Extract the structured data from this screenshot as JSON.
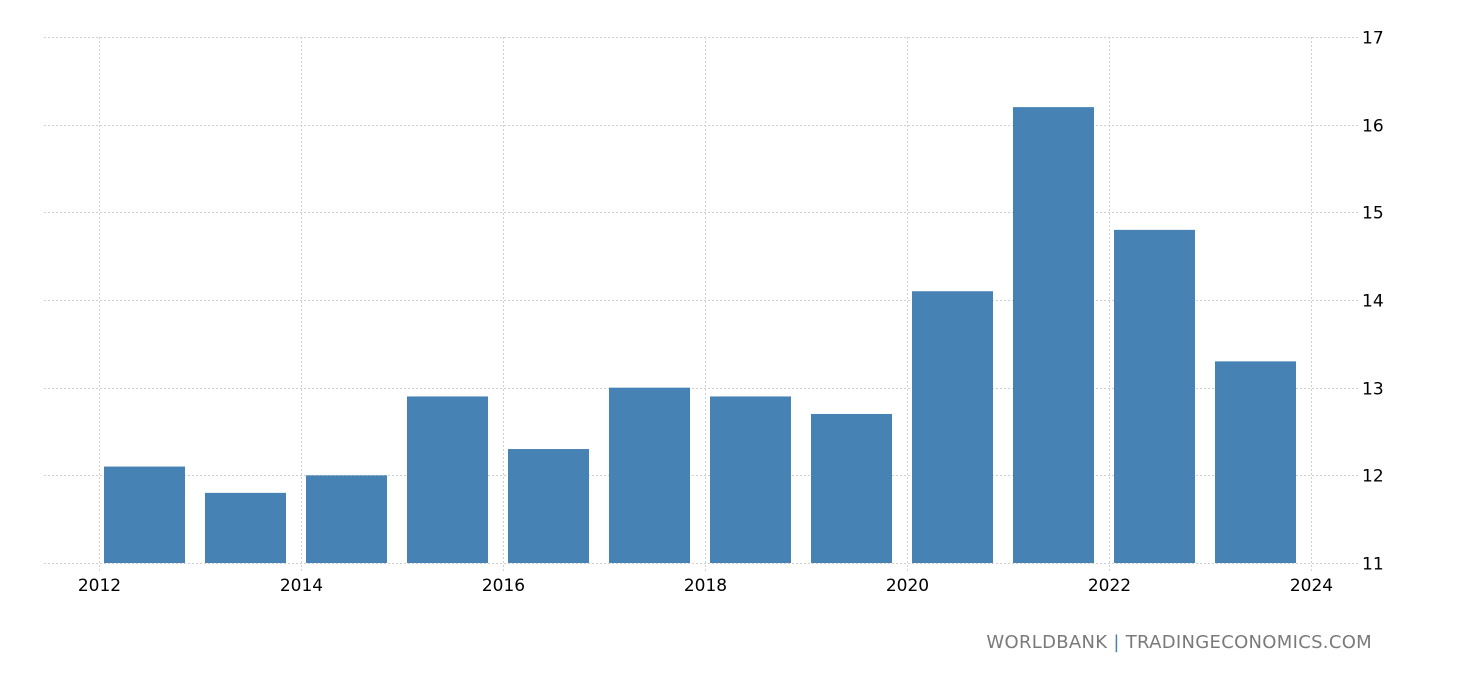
{
  "chart_data": {
    "type": "bar",
    "title": "",
    "xlabel": "",
    "ylabel": "",
    "categories": [
      "2012",
      "2013",
      "2014",
      "2015",
      "2016",
      "2017",
      "2018",
      "2019",
      "2020",
      "2021",
      "2022",
      "2023"
    ],
    "values": [
      12.1,
      11.8,
      12.0,
      12.9,
      12.3,
      13.0,
      12.9,
      12.7,
      14.1,
      16.2,
      14.8,
      13.3
    ],
    "ylim": [
      11,
      17
    ],
    "yticks": [
      11,
      12,
      13,
      14,
      15,
      16,
      17
    ],
    "xticks": [
      "2012",
      "2014",
      "2016",
      "2018",
      "2020",
      "2022",
      "2024"
    ],
    "y_axis_position": "right",
    "grid": true,
    "bar_color": "#4682b4",
    "grid_color": "#d0d0d0",
    "legend": null
  },
  "footer": {
    "source_left": "WORLDBANK",
    "separator": "|",
    "source_right": "TRADINGECONOMICS.COM"
  }
}
